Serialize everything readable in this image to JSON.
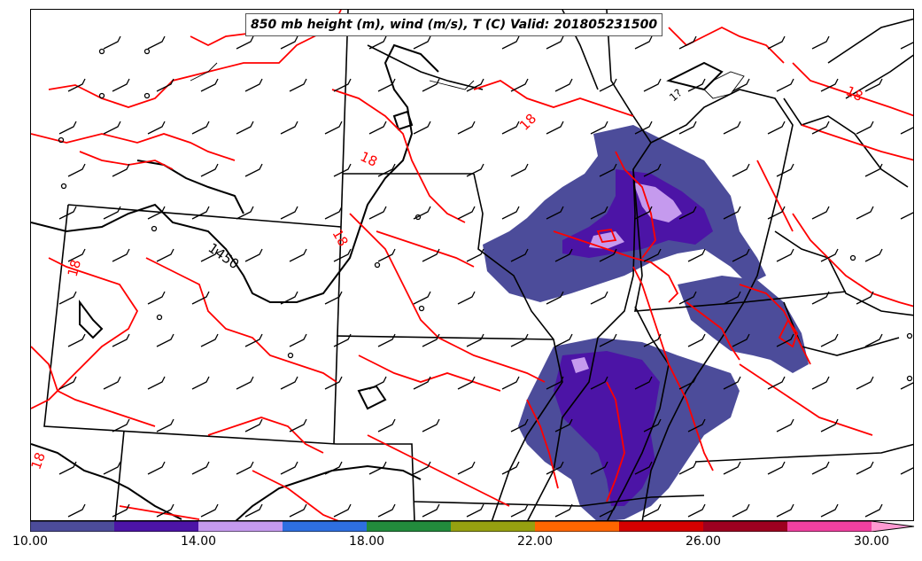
{
  "title": "850 mb height (m), wind (m/s), T (C) Valid: 201805231500",
  "colors": {
    "temperature_contour": "#ff0000",
    "height_contour": "#000000",
    "boundaries": "#000000",
    "background": "#ffffff"
  },
  "contour_labels": [
    {
      "text": "18",
      "name": "temp-label-18-north"
    },
    {
      "text": "18",
      "name": "temp-label-18-ne"
    },
    {
      "text": "18",
      "name": "temp-label-18-central"
    },
    {
      "text": "18",
      "name": "temp-label-18-mid"
    },
    {
      "text": "18",
      "name": "temp-label-18-west"
    },
    {
      "text": "18",
      "name": "temp-label-18-sw"
    },
    {
      "text": "1450",
      "name": "height-label-1450"
    },
    {
      "text": "1?",
      "name": "height-label-nw"
    }
  ],
  "colorbar": {
    "colors": [
      "#4c4c9a",
      "#4c14a6",
      "#c59aee",
      "#2e6fe0",
      "#228b3c",
      "#96a010",
      "#ff6600",
      "#d40000",
      "#9e0020",
      "#f040a0",
      "#ff9ad2"
    ],
    "ticks": [
      "10.00",
      "14.00",
      "18.00",
      "22.00",
      "26.00",
      "30.00"
    ],
    "tick_values": [
      10,
      14,
      18,
      22,
      26,
      30
    ],
    "range": [
      10,
      31
    ]
  }
}
